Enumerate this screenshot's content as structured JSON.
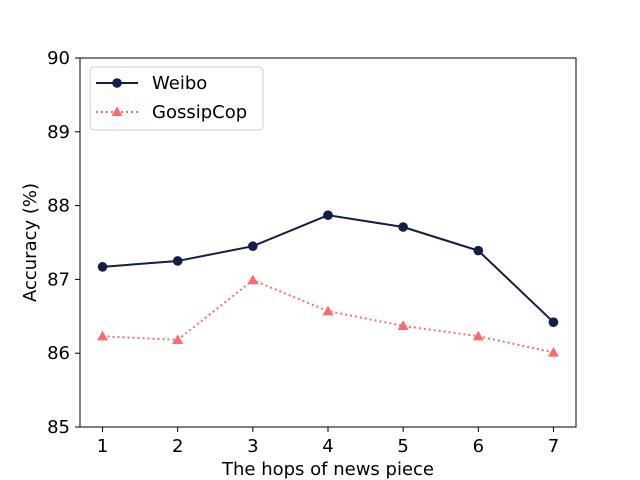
{
  "chart_data": {
    "type": "line",
    "title": "",
    "xlabel": "The hops of news piece",
    "ylabel": "Accuracy (%)",
    "x": [
      1,
      2,
      3,
      4,
      5,
      6,
      7
    ],
    "xticks": [
      "1",
      "2",
      "3",
      "4",
      "5",
      "6",
      "7"
    ],
    "yticks": [
      "85",
      "86",
      "87",
      "88",
      "89",
      "90"
    ],
    "xlim": [
      0.7,
      7.3
    ],
    "ylim": [
      85,
      90
    ],
    "grid": false,
    "legend_position": "top-left",
    "series": [
      {
        "name": "Weibo",
        "values": [
          87.17,
          87.25,
          87.45,
          87.87,
          87.71,
          87.39,
          86.42
        ],
        "color": "#141c48",
        "line_style": "solid",
        "marker": "circle"
      },
      {
        "name": "GossipCop",
        "values": [
          86.23,
          86.18,
          86.99,
          86.57,
          86.37,
          86.23,
          86.01
        ],
        "color": "#fb6b6b",
        "line_style": "dotted",
        "marker": "triangle"
      }
    ]
  }
}
